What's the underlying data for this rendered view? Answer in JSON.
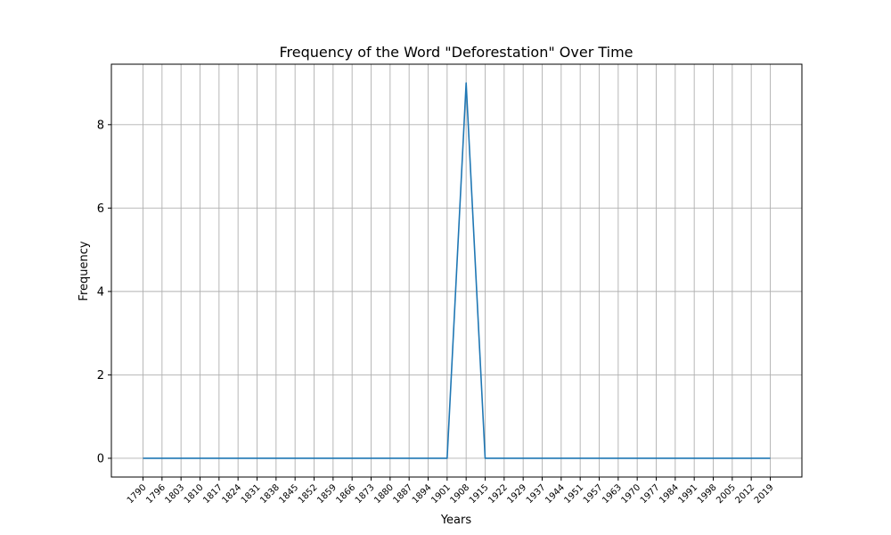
{
  "chart_data": {
    "type": "line",
    "title": "Frequency of the Word \"Deforestation\" Over Time",
    "xlabel": "Years",
    "ylabel": "Frequency",
    "x": [
      1790,
      1797,
      1804,
      1811,
      1818,
      1825,
      1832,
      1839,
      1846,
      1853,
      1860,
      1867,
      1874,
      1881,
      1888,
      1895,
      1902,
      1909,
      1916,
      1923,
      1930,
      1937,
      1944,
      1951,
      1958,
      1965,
      1972,
      1979,
      1986,
      1993,
      2000,
      2007,
      2014,
      2021
    ],
    "series": [
      {
        "values": [
          0,
          0,
          0,
          0,
          0,
          0,
          0,
          0,
          0,
          0,
          0,
          0,
          0,
          0,
          0,
          0,
          0,
          9,
          0,
          0,
          0,
          0,
          0,
          0,
          0,
          0,
          0,
          0,
          0,
          0,
          0,
          0,
          0,
          0
        ],
        "color": "#1f77b4"
      }
    ],
    "xtick_labels": [
      "1790",
      "1796",
      "1803",
      "1810",
      "1817",
      "1824",
      "1831",
      "1838",
      "1845",
      "1852",
      "1859",
      "1866",
      "1873",
      "1880",
      "1887",
      "1894",
      "1901",
      "1908",
      "1915",
      "1922",
      "1929",
      "1937",
      "1944",
      "1951",
      "1957",
      "1963",
      "1970",
      "1977",
      "1984",
      "1991",
      "1998",
      "2005",
      "2012",
      "2019"
    ],
    "yticks": [
      0,
      2,
      4,
      6,
      8
    ],
    "ylim": [
      -0.45,
      9.45
    ],
    "grid": true,
    "legend": false
  }
}
